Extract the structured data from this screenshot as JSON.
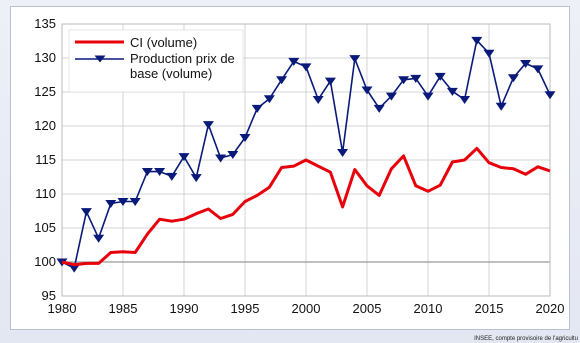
{
  "source_note": "INSEE, compte provisoire de l'agricultu",
  "colors": {
    "ci": "#e8000b",
    "production": "#0a1a7a",
    "grid": "#c9c9c9",
    "baseline": "#9a9a9a"
  },
  "chart_data": {
    "type": "line",
    "title": "",
    "xlabel": "",
    "ylabel": "",
    "xlim": [
      1980,
      2020
    ],
    "ylim": [
      95,
      135
    ],
    "x_ticks": [
      "1980",
      "1985",
      "1990",
      "1995",
      "2000",
      "2005",
      "2010",
      "2015",
      "2020"
    ],
    "y_ticks": [
      "95",
      "100",
      "105",
      "110",
      "115",
      "120",
      "125",
      "130",
      "135"
    ],
    "grid": true,
    "legend_position": "top-left",
    "baseline": 100,
    "x": [
      1980,
      1981,
      1982,
      1983,
      1984,
      1985,
      1986,
      1987,
      1988,
      1989,
      1990,
      1991,
      1992,
      1993,
      1994,
      1995,
      1996,
      1997,
      1998,
      1999,
      2000,
      2001,
      2002,
      2003,
      2004,
      2005,
      2006,
      2007,
      2008,
      2009,
      2010,
      2011,
      2012,
      2013,
      2014,
      2015,
      2016,
      2017,
      2018,
      2019,
      2020
    ],
    "series": [
      {
        "name": "CI (volume)",
        "color": "#e8000b",
        "marker": "none",
        "values": [
          100,
          99.6,
          99.8,
          99.8,
          101.4,
          101.5,
          101.4,
          104.1,
          106.3,
          106.0,
          106.3,
          107.1,
          107.8,
          106.4,
          107.0,
          108.9,
          109.8,
          111.0,
          113.9,
          114.1,
          115.0,
          114.1,
          113.2,
          108.1,
          113.6,
          111.2,
          109.8,
          113.7,
          115.6,
          111.2,
          110.4,
          111.3,
          114.7,
          115.0,
          116.7,
          114.6,
          113.9,
          113.7,
          112.9,
          114.0,
          113.4
        ]
      },
      {
        "name": "Production prix de base (volume)",
        "color": "#0a1a7a",
        "marker": "triangle-down",
        "values": [
          100,
          99.1,
          107.4,
          103.5,
          108.6,
          108.9,
          108.9,
          113.3,
          113.3,
          112.6,
          115.5,
          112.4,
          120.2,
          115.3,
          115.8,
          118.3,
          122.6,
          124.0,
          126.8,
          129.5,
          128.7,
          123.9,
          126.6,
          116.1,
          129.9,
          125.3,
          122.6,
          124.4,
          126.8,
          127.0,
          124.4,
          127.3,
          125.1,
          123.9,
          132.6,
          130.7,
          122.9,
          127.1,
          129.2,
          128.4,
          124.6
        ]
      }
    ]
  }
}
